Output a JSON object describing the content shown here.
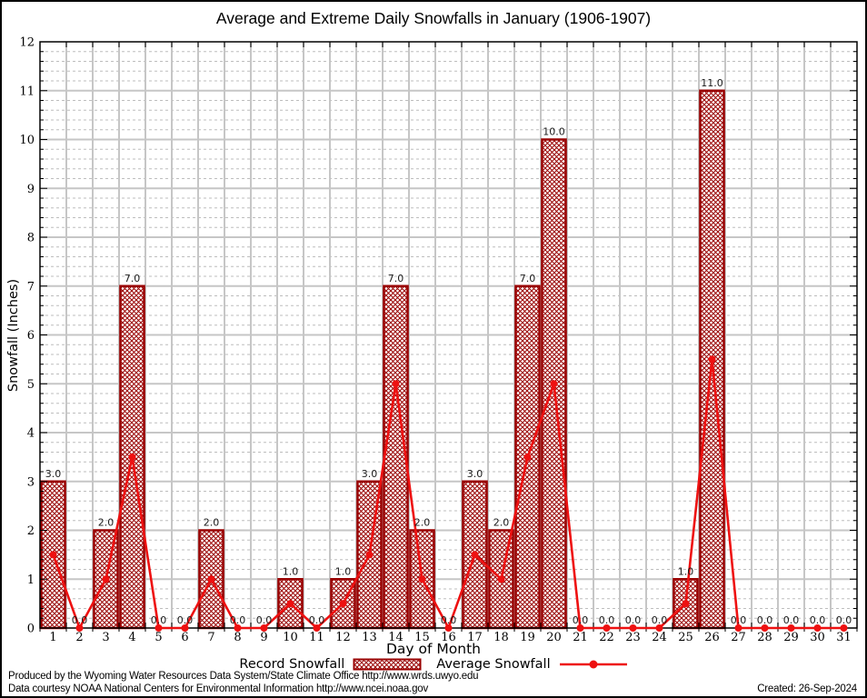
{
  "chart_data": {
    "type": "bar",
    "title": "Average and Extreme Daily Snowfalls in January (1906-1907)",
    "xlabel": "Day of Month",
    "ylabel": "Snowfall (Inches)",
    "categories": [
      1,
      2,
      3,
      4,
      5,
      6,
      7,
      8,
      9,
      10,
      11,
      12,
      13,
      14,
      15,
      16,
      17,
      18,
      19,
      20,
      21,
      22,
      23,
      24,
      25,
      26,
      27,
      28,
      29,
      30,
      31
    ],
    "series": [
      {
        "name": "Record Snowfall",
        "type": "bar",
        "values": [
          3.0,
          0.0,
          2.0,
          7.0,
          0.0,
          0.0,
          2.0,
          0.0,
          0.0,
          1.0,
          0.0,
          1.0,
          3.0,
          7.0,
          2.0,
          0.0,
          3.0,
          2.0,
          7.0,
          10.0,
          0.0,
          0.0,
          0.0,
          0.0,
          1.0,
          11.0,
          0.0,
          0.0,
          0.0,
          0.0,
          0.0
        ]
      },
      {
        "name": "Average Snowfall",
        "type": "line",
        "values": [
          1.5,
          0.0,
          1.0,
          3.5,
          0.0,
          0.0,
          1.0,
          0.0,
          0.0,
          0.5,
          0.0,
          0.5,
          1.5,
          5.0,
          1.0,
          0.0,
          1.5,
          1.0,
          3.5,
          5.0,
          0.0,
          0.0,
          0.0,
          0.0,
          0.5,
          5.5,
          0.0,
          0.0,
          0.0,
          0.0,
          0.0
        ]
      }
    ],
    "ylim": [
      0,
      12
    ],
    "ytick_step": 1,
    "y_minor_step": 0.2,
    "grid": "major-solid, minor-dashed",
    "legend_position": "bottom",
    "bar_value_labels": "all bars labeled with one decimal (e.g. 3.0), zeros labeled 0.0"
  },
  "colors": {
    "record": "#990000",
    "average": "#ee1111",
    "grid_major": "#c6c6c6",
    "grid_minor": "#bdbdbd",
    "frame": "#000000",
    "bar_label_text": "#1a1a1a"
  },
  "footer": {
    "line1": "Produced by the Wyoming Water Resources Data System/State Climate Office http://www.wrds.uwyo.edu",
    "line2": "Data courtesy NOAA National Centers for Environmental Information http://www.ncei.noaa.gov",
    "created": "Created: 26-Sep-2024"
  }
}
